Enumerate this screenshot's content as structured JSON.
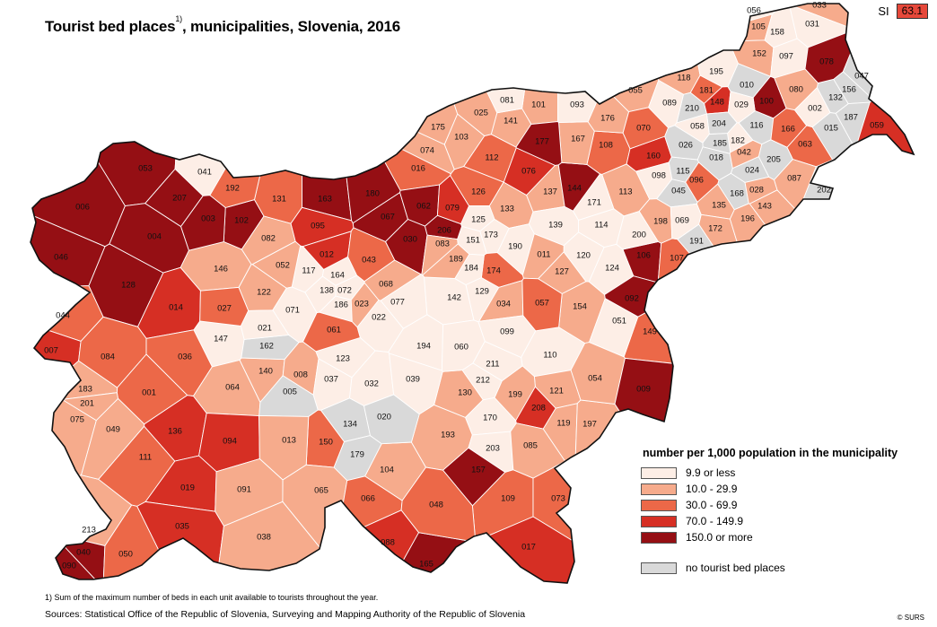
{
  "title": "Tourist bed places",
  "title_suffix": ", municipalities, Slovenia, 2016",
  "title_footnote_mark": "1)",
  "national": {
    "label": "SI",
    "value": "63.1",
    "class": 3
  },
  "legend": {
    "title": "number per 1,000 population in the municipality",
    "classes": [
      {
        "label": "9.9 or less",
        "color": "#fdeee6"
      },
      {
        "label": "10.0 -  29.9",
        "color": "#f6ab8c"
      },
      {
        "label": "30.0 -  69.9",
        "color": "#ec6848"
      },
      {
        "label": "70.0 - 149.9",
        "color": "#d62f24"
      },
      {
        "label": "150.0 or more",
        "color": "#950f14"
      }
    ],
    "none": {
      "label": "no tourist bed places",
      "color": "#d9d9d9"
    }
  },
  "footnote": "1) Sum of the maximum number of beds in each unit available to tourists throughout the year.",
  "sources": "Sources: Statistical Office of the Republic of Slovenia, Surveying and Mapping Authority of the Republic of Slovenia",
  "copyright": "© SURS",
  "municipalities": [
    {
      "id": "056",
      "c": 0
    },
    {
      "id": "033",
      "c": 1
    },
    {
      "id": "158",
      "c": 0
    },
    {
      "id": "031",
      "c": 0
    },
    {
      "id": "105",
      "c": 1
    },
    {
      "id": "152",
      "c": 1
    },
    {
      "id": "097",
      "c": 0
    },
    {
      "id": "078",
      "c": 4
    },
    {
      "id": "047",
      "c": 5
    },
    {
      "id": "195",
      "c": 0
    },
    {
      "id": "010",
      "c": 5
    },
    {
      "id": "118",
      "c": 1
    },
    {
      "id": "080",
      "c": 1
    },
    {
      "id": "156",
      "c": 5
    },
    {
      "id": "132",
      "c": 5
    },
    {
      "id": "055",
      "c": 1
    },
    {
      "id": "181",
      "c": 2
    },
    {
      "id": "089",
      "c": 0
    },
    {
      "id": "210",
      "c": 5
    },
    {
      "id": "148",
      "c": 3
    },
    {
      "id": "029",
      "c": 0
    },
    {
      "id": "100",
      "c": 4
    },
    {
      "id": "116",
      "c": 5
    },
    {
      "id": "002",
      "c": 0
    },
    {
      "id": "187",
      "c": 5
    },
    {
      "id": "015",
      "c": 5
    },
    {
      "id": "059",
      "c": 3
    },
    {
      "id": "081",
      "c": 0
    },
    {
      "id": "101",
      "c": 1
    },
    {
      "id": "093",
      "c": 0
    },
    {
      "id": "025",
      "c": 1
    },
    {
      "id": "141",
      "c": 1
    },
    {
      "id": "176",
      "c": 1
    },
    {
      "id": "070",
      "c": 2
    },
    {
      "id": "058",
      "c": 0
    },
    {
      "id": "204",
      "c": 5
    },
    {
      "id": "166",
      "c": 2
    },
    {
      "id": "063",
      "c": 2
    },
    {
      "id": "175",
      "c": 1
    },
    {
      "id": "103",
      "c": 1
    },
    {
      "id": "074",
      "c": 1
    },
    {
      "id": "177",
      "c": 4
    },
    {
      "id": "167",
      "c": 1
    },
    {
      "id": "108",
      "c": 2
    },
    {
      "id": "026",
      "c": 5
    },
    {
      "id": "185",
      "c": 5
    },
    {
      "id": "182",
      "c": 0
    },
    {
      "id": "016",
      "c": 2
    },
    {
      "id": "112",
      "c": 2
    },
    {
      "id": "076",
      "c": 3
    },
    {
      "id": "160",
      "c": 3
    },
    {
      "id": "018",
      "c": 5
    },
    {
      "id": "042",
      "c": 1
    },
    {
      "id": "205",
      "c": 5
    },
    {
      "id": "053",
      "c": 4
    },
    {
      "id": "041",
      "c": 0
    },
    {
      "id": "098",
      "c": 0
    },
    {
      "id": "115",
      "c": 5
    },
    {
      "id": "096",
      "c": 2
    },
    {
      "id": "024",
      "c": 5
    },
    {
      "id": "087",
      "c": 1
    },
    {
      "id": "192",
      "c": 2
    },
    {
      "id": "131",
      "c": 2
    },
    {
      "id": "163",
      "c": 4
    },
    {
      "id": "180",
      "c": 4
    },
    {
      "id": "126",
      "c": 2
    },
    {
      "id": "137",
      "c": 1
    },
    {
      "id": "144",
      "c": 4
    },
    {
      "id": "113",
      "c": 1
    },
    {
      "id": "045",
      "c": 5
    },
    {
      "id": "168",
      "c": 5
    },
    {
      "id": "028",
      "c": 1
    },
    {
      "id": "202",
      "c": 5
    },
    {
      "id": "006",
      "c": 4
    },
    {
      "id": "207",
      "c": 4
    },
    {
      "id": "003",
      "c": 4
    },
    {
      "id": "102",
      "c": 4
    },
    {
      "id": "067",
      "c": 4
    },
    {
      "id": "062",
      "c": 4
    },
    {
      "id": "079",
      "c": 3
    },
    {
      "id": "133",
      "c": 1
    },
    {
      "id": "171",
      "c": 0
    },
    {
      "id": "135",
      "c": 1
    },
    {
      "id": "143",
      "c": 1
    },
    {
      "id": "004",
      "c": 4
    },
    {
      "id": "095",
      "c": 3
    },
    {
      "id": "082",
      "c": 1
    },
    {
      "id": "125",
      "c": 0
    },
    {
      "id": "206",
      "c": 4
    },
    {
      "id": "173",
      "c": 0
    },
    {
      "id": "139",
      "c": 0
    },
    {
      "id": "114",
      "c": 0
    },
    {
      "id": "198",
      "c": 1
    },
    {
      "id": "069",
      "c": 0
    },
    {
      "id": "196",
      "c": 1
    },
    {
      "id": "046",
      "c": 4
    },
    {
      "id": "030",
      "c": 4
    },
    {
      "id": "083",
      "c": 1
    },
    {
      "id": "151",
      "c": 0
    },
    {
      "id": "190",
      "c": 0
    },
    {
      "id": "200",
      "c": 0
    },
    {
      "id": "172",
      "c": 1
    },
    {
      "id": "191",
      "c": 5
    },
    {
      "id": "012",
      "c": 3
    },
    {
      "id": "052",
      "c": 1
    },
    {
      "id": "043",
      "c": 2
    },
    {
      "id": "189",
      "c": 1
    },
    {
      "id": "011",
      "c": 1
    },
    {
      "id": "120",
      "c": 0
    },
    {
      "id": "106",
      "c": 4
    },
    {
      "id": "107",
      "c": 2
    },
    {
      "id": "128",
      "c": 4
    },
    {
      "id": "146",
      "c": 1
    },
    {
      "id": "117",
      "c": 0
    },
    {
      "id": "164",
      "c": 0
    },
    {
      "id": "184",
      "c": 0
    },
    {
      "id": "174",
      "c": 2
    },
    {
      "id": "127",
      "c": 1
    },
    {
      "id": "124",
      "c": 0
    },
    {
      "id": "068",
      "c": 1
    },
    {
      "id": "138",
      "c": 0
    },
    {
      "id": "072",
      "c": 0
    },
    {
      "id": "122",
      "c": 1
    },
    {
      "id": "023",
      "c": 1
    },
    {
      "id": "142",
      "c": 0
    },
    {
      "id": "129",
      "c": 0
    },
    {
      "id": "092",
      "c": 4
    },
    {
      "id": "014",
      "c": 3
    },
    {
      "id": "027",
      "c": 2
    },
    {
      "id": "071",
      "c": 0
    },
    {
      "id": "186",
      "c": 0
    },
    {
      "id": "077",
      "c": 0
    },
    {
      "id": "022",
      "c": 0
    },
    {
      "id": "034",
      "c": 1
    },
    {
      "id": "057",
      "c": 2
    },
    {
      "id": "154",
      "c": 1
    },
    {
      "id": "044",
      "c": 2
    },
    {
      "id": "051",
      "c": 0
    },
    {
      "id": "147",
      "c": 0
    },
    {
      "id": "021",
      "c": 0
    },
    {
      "id": "061",
      "c": 2
    },
    {
      "id": "099",
      "c": 0
    },
    {
      "id": "149",
      "c": 2
    },
    {
      "id": "162",
      "c": 5
    },
    {
      "id": "194",
      "c": 0
    },
    {
      "id": "060",
      "c": 0
    },
    {
      "id": "007",
      "c": 3
    },
    {
      "id": "084",
      "c": 2
    },
    {
      "id": "036",
      "c": 2
    },
    {
      "id": "110",
      "c": 0
    },
    {
      "id": "140",
      "c": 1
    },
    {
      "id": "123",
      "c": 0
    },
    {
      "id": "008",
      "c": 1
    },
    {
      "id": "211",
      "c": 0
    },
    {
      "id": "037",
      "c": 0
    },
    {
      "id": "032",
      "c": 0
    },
    {
      "id": "039",
      "c": 0
    },
    {
      "id": "212",
      "c": 0
    },
    {
      "id": "054",
      "c": 1
    },
    {
      "id": "009",
      "c": 4
    },
    {
      "id": "001",
      "c": 2
    },
    {
      "id": "064",
      "c": 1
    },
    {
      "id": "005",
      "c": 5
    },
    {
      "id": "130",
      "c": 1
    },
    {
      "id": "199",
      "c": 1
    },
    {
      "id": "121",
      "c": 1
    },
    {
      "id": "183",
      "c": 1
    },
    {
      "id": "201",
      "c": 1
    },
    {
      "id": "208",
      "c": 3
    },
    {
      "id": "075",
      "c": 1
    },
    {
      "id": "134",
      "c": 5
    },
    {
      "id": "020",
      "c": 5
    },
    {
      "id": "170",
      "c": 0
    },
    {
      "id": "119",
      "c": 1
    },
    {
      "id": "197",
      "c": 1
    },
    {
      "id": "049",
      "c": 1
    },
    {
      "id": "136",
      "c": 3
    },
    {
      "id": "094",
      "c": 3
    },
    {
      "id": "013",
      "c": 1
    },
    {
      "id": "193",
      "c": 1
    },
    {
      "id": "150",
      "c": 2
    },
    {
      "id": "203",
      "c": 0
    },
    {
      "id": "085",
      "c": 1
    },
    {
      "id": "179",
      "c": 5
    },
    {
      "id": "111",
      "c": 2
    },
    {
      "id": "104",
      "c": 1
    },
    {
      "id": "157",
      "c": 4
    },
    {
      "id": "019",
      "c": 3
    },
    {
      "id": "091",
      "c": 1
    },
    {
      "id": "065",
      "c": 1
    },
    {
      "id": "066",
      "c": 2
    },
    {
      "id": "048",
      "c": 2
    },
    {
      "id": "109",
      "c": 2
    },
    {
      "id": "073",
      "c": 2
    },
    {
      "id": "213",
      "c": 1
    },
    {
      "id": "035",
      "c": 3
    },
    {
      "id": "038",
      "c": 1
    },
    {
      "id": "017",
      "c": 3
    },
    {
      "id": "040",
      "c": 4
    },
    {
      "id": "090",
      "c": 4
    },
    {
      "id": "050",
      "c": 2
    },
    {
      "id": "088",
      "c": 3
    },
    {
      "id": "165",
      "c": 4
    }
  ]
}
